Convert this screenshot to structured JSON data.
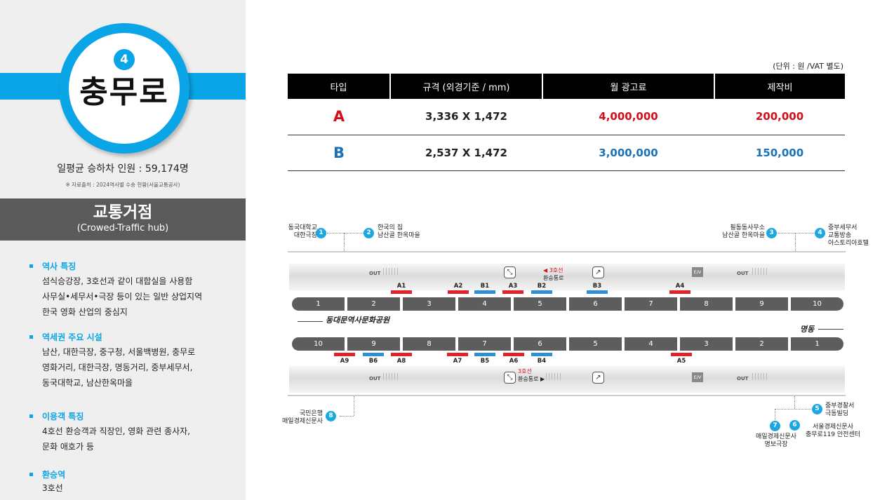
{
  "station": {
    "line_number": "4",
    "name": "충무로",
    "daily_riders": "일평균 승하차 인원 : 59,174명",
    "source": "※ 자료출처 : 2024역사별 수송 현황(서울교통공사)",
    "colors": {
      "line_blue": "#0aa5e6"
    }
  },
  "hub": {
    "title": "교통거점",
    "subtitle": "(Crowed-Traffic hub)"
  },
  "sections": [
    {
      "title": "역사 특징",
      "lines": [
        "섬식승강장, 3호선과 같이 대합실을 사용함",
        "사무실•세무서•극장 등이 있는 일반 상업지역",
        "한국 영화 산업의 중심지"
      ]
    },
    {
      "title": "역세권 주요 시설",
      "lines": [
        "남산, 대한극장, 중구청, 서울백병원, 충무로",
        "영화거리, 대한극장, 명동거리, 중부세무서,",
        "동국대학교, 남산한옥마을"
      ]
    },
    {
      "title": "이용객 특징",
      "lines": [
        "4호선 환승객과 직장인, 영화 관련 종사자,",
        "문화 애호가 등"
      ]
    },
    {
      "title": "환승역",
      "lines": [
        "3호선"
      ]
    }
  ],
  "table": {
    "unit_note": "(단위 : 원 /VAT 별도)",
    "headers": [
      "타입",
      "규격 (외경기준 / mm)",
      "월 광고료",
      "제작비"
    ],
    "rows": [
      {
        "type": "A",
        "size": "3,336 X 1,472",
        "monthly_fee": "4,000,000",
        "production": "200,000",
        "color": "#d40f1b"
      },
      {
        "type": "B",
        "size": "2,537 X 1,472",
        "monthly_fee": "3,000,000",
        "production": "150,000",
        "color": "#1a72b8"
      }
    ]
  },
  "diagram": {
    "exits_top_left": [
      {
        "num": "1",
        "label": [
          "동국대학교",
          "대한극장"
        ]
      },
      {
        "num": "2",
        "label": [
          "한국의 집",
          "남산골 한옥마을"
        ]
      }
    ],
    "exits_top_right": [
      {
        "num": "3",
        "label": [
          "필동동사무소",
          "남산골 한옥마을"
        ]
      },
      {
        "num": "4",
        "label": [
          "중부세무서",
          "교통방송",
          "아스토리아호텔"
        ]
      }
    ],
    "exits_bottom": [
      {
        "num": "8",
        "label": [
          "국민은행",
          "매일경제신문사"
        ]
      },
      {
        "num": "5",
        "label": [
          "중부경찰서",
          "극동빌딩"
        ]
      },
      {
        "num": "7",
        "label": [
          "매일경제신문사",
          "명보극장"
        ]
      },
      {
        "num": "6",
        "label": [
          "서울경제신문사",
          "충무로119 안전센터"
        ]
      }
    ],
    "top_platform_doors": [
      "1",
      "2",
      "3",
      "4",
      "5",
      "6",
      "7",
      "8",
      "9",
      "10"
    ],
    "bottom_platform_doors": [
      "10",
      "9",
      "8",
      "7",
      "6",
      "5",
      "4",
      "3",
      "2",
      "1"
    ],
    "top_ads": [
      {
        "label": "A1",
        "color": "red"
      },
      {
        "label": "A2",
        "color": "red"
      },
      {
        "label": "B1",
        "color": "blue"
      },
      {
        "label": "A3",
        "color": "red"
      },
      {
        "label": "B2",
        "color": "blue"
      },
      {
        "label": "B3",
        "color": "blue"
      },
      {
        "label": "A4",
        "color": "red"
      }
    ],
    "bottom_ads": [
      {
        "label": "A9",
        "color": "red"
      },
      {
        "label": "B6",
        "color": "blue"
      },
      {
        "label": "A8",
        "color": "red"
      },
      {
        "label": "A7",
        "color": "red"
      },
      {
        "label": "B5",
        "color": "blue"
      },
      {
        "label": "A6",
        "color": "red"
      },
      {
        "label": "B4",
        "color": "blue"
      },
      {
        "label": "A5",
        "color": "red"
      }
    ],
    "direction_left": "동대문역사문화공원",
    "direction_right": "명동",
    "transfer_top": [
      "◀ 3호선",
      "환승통로"
    ],
    "transfer_bottom": [
      "3호선",
      "환승통로 ▶"
    ],
    "out_label": "OUT",
    "ev_label": "E/V"
  }
}
